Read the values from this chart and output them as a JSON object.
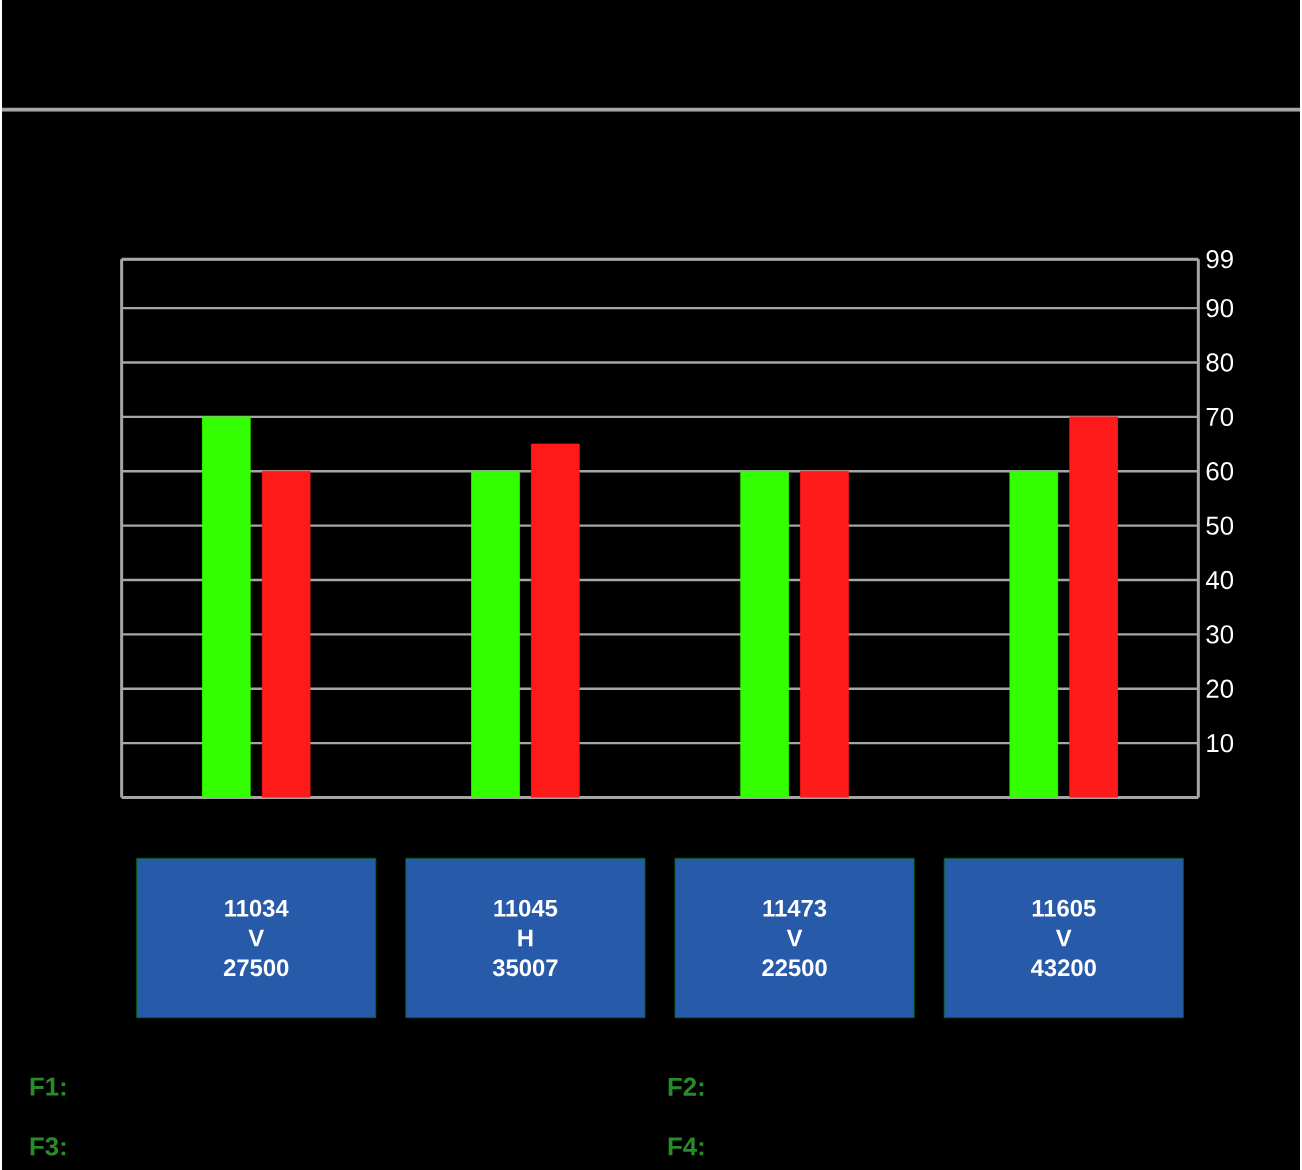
{
  "chart_data": {
    "type": "bar",
    "categories": [
      "11034 V 27500",
      "11045 H 35007",
      "11473 V 22500",
      "11605 V 43200"
    ],
    "series": [
      {
        "color": "#33ff00",
        "values": [
          70,
          60,
          60,
          60
        ]
      },
      {
        "color": "#ff1a1a",
        "values": [
          60,
          65,
          60,
          70
        ]
      }
    ],
    "ylim": [
      0,
      99
    ],
    "yticks": [
      10,
      20,
      30,
      40,
      50,
      60,
      70,
      80,
      90,
      99
    ],
    "grid": "y",
    "annotations": [
      "F1:",
      "F2:",
      "F3:",
      "F4:"
    ]
  }
}
